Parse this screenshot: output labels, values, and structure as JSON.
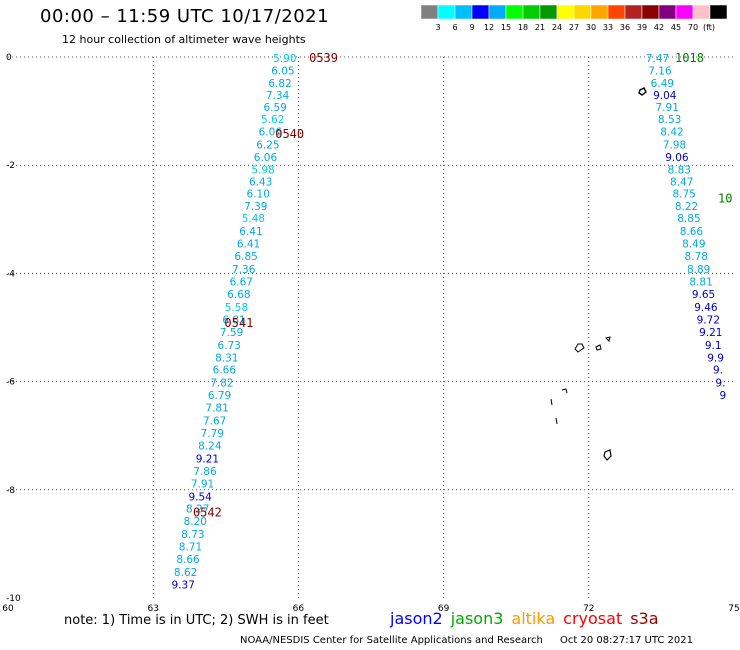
{
  "header": {
    "title": "00:00 – 11:59 UTC 10/17/2021",
    "subtitle": "12 hour collection of altimeter wave heights"
  },
  "colorbar": {
    "unit": "(ft)",
    "colors": [
      "#808080",
      "#00ffff",
      "#00bfff",
      "#0000ff",
      "#00aaff",
      "#00ff00",
      "#00cc00",
      "#009900",
      "#ffff00",
      "#ffd700",
      "#ffa500",
      "#ff4500",
      "#b22222",
      "#8b0000",
      "#800080",
      "#ff00ff",
      "#ffc0cb",
      "#000000"
    ],
    "labels": [
      "3",
      "6",
      "9",
      "12",
      "15",
      "18",
      "21",
      "24",
      "27",
      "30",
      "33",
      "36",
      "39",
      "42",
      "45",
      "70"
    ]
  },
  "axes": {
    "x_ticks": [
      "60",
      "63",
      "66",
      "69",
      "72",
      "75"
    ],
    "y_ticks": [
      "0",
      "-2",
      "-4",
      "-6",
      "-8",
      "-10"
    ]
  },
  "chart_data": {
    "type": "scatter",
    "title": "00:00 – 11:59 UTC 10/17/2021",
    "xlim": [
      60,
      75
    ],
    "ylim": [
      -10,
      0
    ],
    "units": "ft",
    "track_times": [
      {
        "label": "0539",
        "x": 66.52,
        "y": -0.02,
        "color": "#800000"
      },
      {
        "label": "0540",
        "x": 65.82,
        "y": -1.42,
        "color": "#800000"
      },
      {
        "label": "0541",
        "x": 64.77,
        "y": -4.92,
        "color": "#800000"
      },
      {
        "label": "0542",
        "x": 64.12,
        "y": -8.42,
        "color": "#800000"
      },
      {
        "label": "1018",
        "x": 74.08,
        "y": -0.02,
        "color": "#008000"
      },
      {
        "label": "10",
        "x": 74.82,
        "y": -2.62,
        "color": "#008000"
      }
    ],
    "series": [
      {
        "name": "track-1",
        "points": [
          {
            "x": 65.72,
            "y": -0.02,
            "v": "5.90",
            "c": "#00ccdd"
          },
          {
            "x": 65.68,
            "y": -0.25,
            "v": "6.05",
            "c": "#00aadd"
          },
          {
            "x": 65.62,
            "y": -0.48,
            "v": "6.82",
            "c": "#00aadd"
          },
          {
            "x": 65.57,
            "y": -0.7,
            "v": "7.34",
            "c": "#00aadd"
          },
          {
            "x": 65.52,
            "y": -0.92,
            "v": "6.59",
            "c": "#00aadd"
          },
          {
            "x": 65.47,
            "y": -1.15,
            "v": "5.62",
            "c": "#00ccdd"
          },
          {
            "x": 65.42,
            "y": -1.38,
            "v": "6.06",
            "c": "#00aadd"
          },
          {
            "x": 65.37,
            "y": -1.62,
            "v": "6.25",
            "c": "#00aadd"
          },
          {
            "x": 65.32,
            "y": -1.85,
            "v": "6.06",
            "c": "#00aadd"
          },
          {
            "x": 65.27,
            "y": -2.08,
            "v": "5.98",
            "c": "#00ccdd"
          },
          {
            "x": 65.22,
            "y": -2.3,
            "v": "6.43",
            "c": "#00aadd"
          },
          {
            "x": 65.17,
            "y": -2.52,
            "v": "6.10",
            "c": "#00aadd"
          },
          {
            "x": 65.12,
            "y": -2.75,
            "v": "7.39",
            "c": "#00aadd"
          },
          {
            "x": 65.07,
            "y": -2.98,
            "v": "5.48",
            "c": "#00ccdd"
          },
          {
            "x": 65.02,
            "y": -3.22,
            "v": "6.41",
            "c": "#00aadd"
          },
          {
            "x": 64.97,
            "y": -3.45,
            "v": "6.41",
            "c": "#00aadd"
          },
          {
            "x": 64.92,
            "y": -3.68,
            "v": "6.85",
            "c": "#00aadd"
          },
          {
            "x": 64.87,
            "y": -3.92,
            "v": "7.36",
            "c": "#00aadd"
          },
          {
            "x": 64.82,
            "y": -4.15,
            "v": "6.67",
            "c": "#00aadd"
          },
          {
            "x": 64.77,
            "y": -4.38,
            "v": "6.68",
            "c": "#00aadd"
          },
          {
            "x": 64.72,
            "y": -4.62,
            "v": "5.58",
            "c": "#00ccdd"
          },
          {
            "x": 64.67,
            "y": -4.85,
            "v": "6.81",
            "c": "#00aadd"
          },
          {
            "x": 64.62,
            "y": -5.08,
            "v": "7.59",
            "c": "#00aadd"
          },
          {
            "x": 64.57,
            "y": -5.32,
            "v": "6.73",
            "c": "#00aadd"
          },
          {
            "x": 64.52,
            "y": -5.55,
            "v": "8.31",
            "c": "#00aadd"
          },
          {
            "x": 64.47,
            "y": -5.78,
            "v": "6.66",
            "c": "#00aadd"
          },
          {
            "x": 64.42,
            "y": -6.02,
            "v": "7.82",
            "c": "#00aadd"
          },
          {
            "x": 64.37,
            "y": -6.25,
            "v": "6.79",
            "c": "#00aadd"
          },
          {
            "x": 64.32,
            "y": -6.48,
            "v": "7.81",
            "c": "#00aadd"
          },
          {
            "x": 64.27,
            "y": -6.72,
            "v": "7.67",
            "c": "#00aadd"
          },
          {
            "x": 64.22,
            "y": -6.95,
            "v": "7.79",
            "c": "#00aadd"
          },
          {
            "x": 64.17,
            "y": -7.18,
            "v": "8.24",
            "c": "#00aadd"
          },
          {
            "x": 64.12,
            "y": -7.42,
            "v": "9.21",
            "c": "#0000cc"
          },
          {
            "x": 64.07,
            "y": -7.65,
            "v": "7.86",
            "c": "#00aadd"
          },
          {
            "x": 64.02,
            "y": -7.88,
            "v": "7.91",
            "c": "#00aadd"
          },
          {
            "x": 63.97,
            "y": -8.12,
            "v": "9.54",
            "c": "#0000cc"
          },
          {
            "x": 63.92,
            "y": -8.35,
            "v": "8.27",
            "c": "#00aadd"
          },
          {
            "x": 63.87,
            "y": -8.58,
            "v": "8.20",
            "c": "#00aadd"
          },
          {
            "x": 63.82,
            "y": -8.82,
            "v": "8.73",
            "c": "#00aadd"
          },
          {
            "x": 63.77,
            "y": -9.05,
            "v": "8.71",
            "c": "#00aadd"
          },
          {
            "x": 63.72,
            "y": -9.28,
            "v": "8.66",
            "c": "#00aadd"
          },
          {
            "x": 63.67,
            "y": -9.52,
            "v": "8.62",
            "c": "#00aadd"
          },
          {
            "x": 63.62,
            "y": -9.75,
            "v": "9.37",
            "c": "#0000cc"
          }
        ]
      },
      {
        "name": "track-2",
        "points": [
          {
            "x": 73.42,
            "y": -0.02,
            "v": "7.47",
            "c": "#00aadd"
          },
          {
            "x": 73.47,
            "y": -0.25,
            "v": "7.16",
            "c": "#00aadd"
          },
          {
            "x": 73.52,
            "y": -0.48,
            "v": "6.49",
            "c": "#00aadd"
          },
          {
            "x": 73.57,
            "y": -0.7,
            "v": "9.04",
            "c": "#0000cc"
          },
          {
            "x": 73.62,
            "y": -0.92,
            "v": "7.91",
            "c": "#00aadd"
          },
          {
            "x": 73.67,
            "y": -1.15,
            "v": "8.53",
            "c": "#00aadd"
          },
          {
            "x": 73.72,
            "y": -1.38,
            "v": "8.42",
            "c": "#00aadd"
          },
          {
            "x": 73.77,
            "y": -1.62,
            "v": "7.98",
            "c": "#00aadd"
          },
          {
            "x": 73.82,
            "y": -1.85,
            "v": "9.06",
            "c": "#0000cc"
          },
          {
            "x": 73.87,
            "y": -2.08,
            "v": "8.83",
            "c": "#00aadd"
          },
          {
            "x": 73.92,
            "y": -2.3,
            "v": "8.47",
            "c": "#00aadd"
          },
          {
            "x": 73.97,
            "y": -2.52,
            "v": "8.75",
            "c": "#00aadd"
          },
          {
            "x": 74.02,
            "y": -2.75,
            "v": "8.22",
            "c": "#00aadd"
          },
          {
            "x": 74.07,
            "y": -2.98,
            "v": "8.85",
            "c": "#00aadd"
          },
          {
            "x": 74.12,
            "y": -3.22,
            "v": "8.66",
            "c": "#00aadd"
          },
          {
            "x": 74.17,
            "y": -3.45,
            "v": "8.49",
            "c": "#00aadd"
          },
          {
            "x": 74.22,
            "y": -3.68,
            "v": "8.78",
            "c": "#00aadd"
          },
          {
            "x": 74.27,
            "y": -3.92,
            "v": "8.89",
            "c": "#00aadd"
          },
          {
            "x": 74.32,
            "y": -4.15,
            "v": "8.81",
            "c": "#00aadd"
          },
          {
            "x": 74.37,
            "y": -4.38,
            "v": "9.65",
            "c": "#0000cc"
          },
          {
            "x": 74.42,
            "y": -4.62,
            "v": "9.46",
            "c": "#0000cc"
          },
          {
            "x": 74.47,
            "y": -4.85,
            "v": "9.72",
            "c": "#0000cc"
          },
          {
            "x": 74.52,
            "y": -5.08,
            "v": "9.21",
            "c": "#0000cc"
          },
          {
            "x": 74.57,
            "y": -5.32,
            "v": "9.1",
            "c": "#0000cc"
          },
          {
            "x": 74.62,
            "y": -5.55,
            "v": "9.9",
            "c": "#0000cc"
          },
          {
            "x": 74.67,
            "y": -5.78,
            "v": "9.",
            "c": "#0000cc"
          },
          {
            "x": 74.72,
            "y": -6.02,
            "v": "9.",
            "c": "#0000cc"
          },
          {
            "x": 74.77,
            "y": -6.25,
            "v": "9",
            "c": "#0000cc"
          }
        ]
      }
    ]
  },
  "note": "note: 1) Time is in UTC; 2) SWH is in feet",
  "legend": [
    {
      "name": "jason2",
      "color": "#0000ff"
    },
    {
      "name": "jason3",
      "color": "#00aa00"
    },
    {
      "name": "altika",
      "color": "#ff9900"
    },
    {
      "name": "cryosat",
      "color": "#ff0000"
    },
    {
      "name": "s3a",
      "color": "#990000"
    }
  ],
  "footer": {
    "credit": "NOAA/NESDIS Center for Satellite Applications and Research",
    "timestamp": "Oct 20 08:27:17 UTC 2021"
  }
}
